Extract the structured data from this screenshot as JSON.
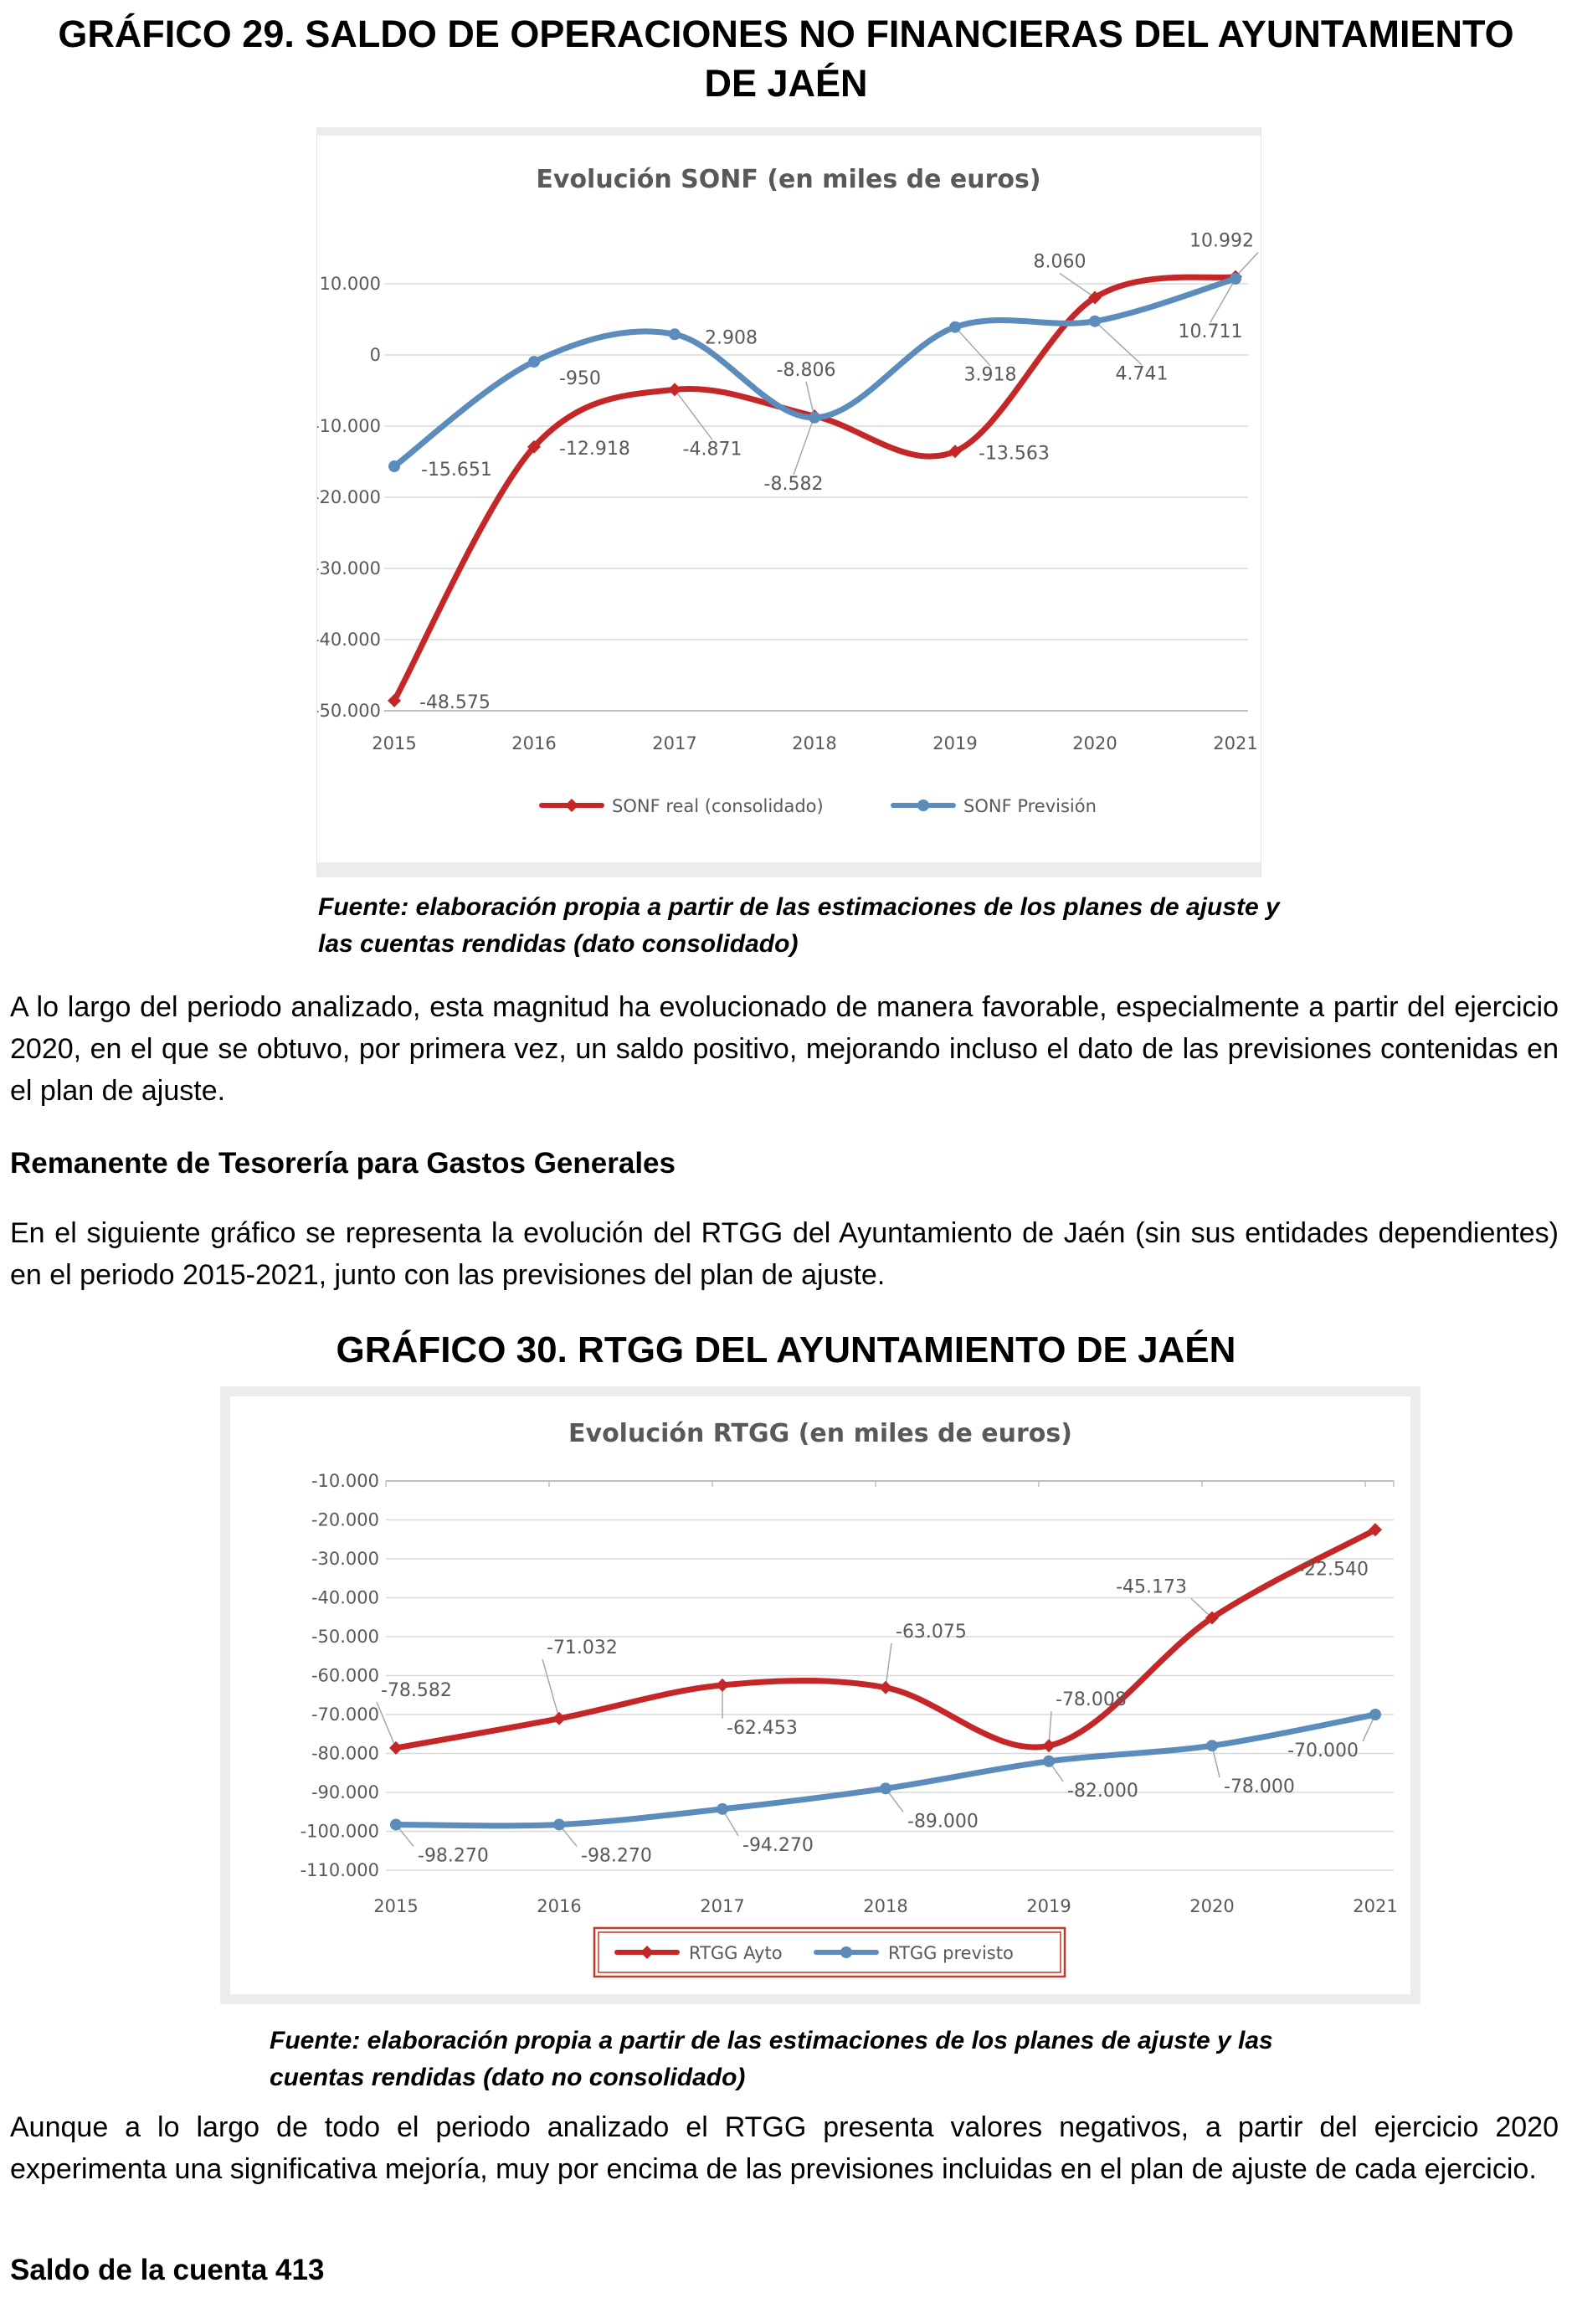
{
  "doc": {
    "grafico29_title": "GRÁFICO 29. SALDO DE OPERACIONES NO FINANCIERAS DEL AYUNTAMIENTO DE JAÉN",
    "fuente1": "Fuente: elaboración propia a partir de las estimaciones de los planes de ajuste y las cuentas rendidas (dato consolidado)",
    "para1": "A lo largo del periodo analizado, esta magnitud ha evolucionado de manera favorable, especialmente a partir del ejercicio 2020, en el que se obtuvo, por primera vez, un saldo positivo, mejorando incluso el dato de las previsiones contenidas en el plan de ajuste.",
    "heading_remanente": "Remanente de Tesorería para Gastos Generales",
    "para2": "En el siguiente gráfico se representa la evolución del RTGG del Ayuntamiento de Jaén (sin sus entidades dependientes) en el periodo 2015-2021, junto con las previsiones del plan de ajuste.",
    "grafico30_title": "GRÁFICO 30. RTGG DEL AYUNTAMIENTO DE JAÉN",
    "fuente2": "Fuente: elaboración propia a partir de las estimaciones de los planes de ajuste y las cuentas rendidas (dato no consolidado)",
    "para3": "Aunque a lo largo de todo el periodo analizado el RTGG presenta valores negativos, a partir del ejercicio 2020 experimenta una significativa mejoría, muy por encima de las previsiones incluidas en el plan de ajuste de cada ejercicio.",
    "heading_saldo413": "Saldo de la cuenta 413"
  },
  "chart_data": [
    {
      "type": "line",
      "title": "Evolución SONF (en miles de euros)",
      "categories": [
        "2015",
        "2016",
        "2017",
        "2018",
        "2019",
        "2020",
        "2021"
      ],
      "series": [
        {
          "name": "SONF real (consolidado)",
          "color": "#c52728",
          "values": [
            -48575,
            -12918,
            -4871,
            -8582,
            -13563,
            8060,
            10992
          ],
          "point_labels": [
            "-48.575",
            "-12.918",
            "-4.871",
            "-8.582",
            "-13.563",
            "8.060",
            "10.992"
          ]
        },
        {
          "name": "SONF Previsión",
          "color": "#5b8cbb",
          "values": [
            -15651,
            -950,
            2908,
            -8806,
            3918,
            4741,
            10711
          ],
          "point_labels": [
            "-15.651",
            "-950",
            "2.908",
            "-8.806",
            "3.918",
            "4.741",
            "10.711"
          ]
        }
      ],
      "ylim": [
        -50000,
        10000
      ],
      "ytick_values": [
        10000,
        0,
        -10000,
        -20000,
        -30000,
        -40000,
        -50000
      ],
      "ytick_labels": [
        "10.000",
        "0",
        "-10.000",
        "-20.000",
        "-30.000",
        "-40.000",
        "-50.000"
      ],
      "xlabel": "",
      "ylabel": "",
      "grid": true,
      "smoothed": true,
      "legend_position": "bottom"
    },
    {
      "type": "line",
      "title": "Evolución RTGG (en miles de euros)",
      "categories": [
        "2015",
        "2016",
        "2017",
        "2018",
        "2019",
        "2020",
        "2021"
      ],
      "series": [
        {
          "name": "RTGG Ayto",
          "color": "#c52728",
          "values": [
            -78582,
            -71032,
            -62453,
            -63075,
            -78008,
            -45173,
            -22540
          ],
          "point_labels": [
            "-78.582",
            "-71.032",
            "-62.453",
            "-63.075",
            "-78.008",
            "-45.173",
            "-22.540"
          ]
        },
        {
          "name": "RTGG previsto",
          "color": "#5b8cbb",
          "values": [
            -98270,
            -98270,
            -94270,
            -89000,
            -82000,
            -78000,
            -70000
          ],
          "point_labels": [
            "-98.270",
            "-98.270",
            "-94.270",
            "-89.000",
            "-82.000",
            "-78.000",
            "-70.000"
          ]
        }
      ],
      "ylim": [
        -110000,
        -10000
      ],
      "ytick_values": [
        -10000,
        -20000,
        -30000,
        -40000,
        -50000,
        -60000,
        -70000,
        -80000,
        -90000,
        -100000,
        -110000
      ],
      "ytick_labels": [
        "-10.000",
        "-20.000",
        "-30.000",
        "-40.000",
        "-50.000",
        "-60.000",
        "-70.000",
        "-80.000",
        "-90.000",
        "-100.000",
        "-110.000"
      ],
      "xlabel": "",
      "ylabel": "",
      "grid": true,
      "smoothed": true,
      "legend_position": "bottom-boxed",
      "legend_border_color": "#c0392b"
    }
  ]
}
